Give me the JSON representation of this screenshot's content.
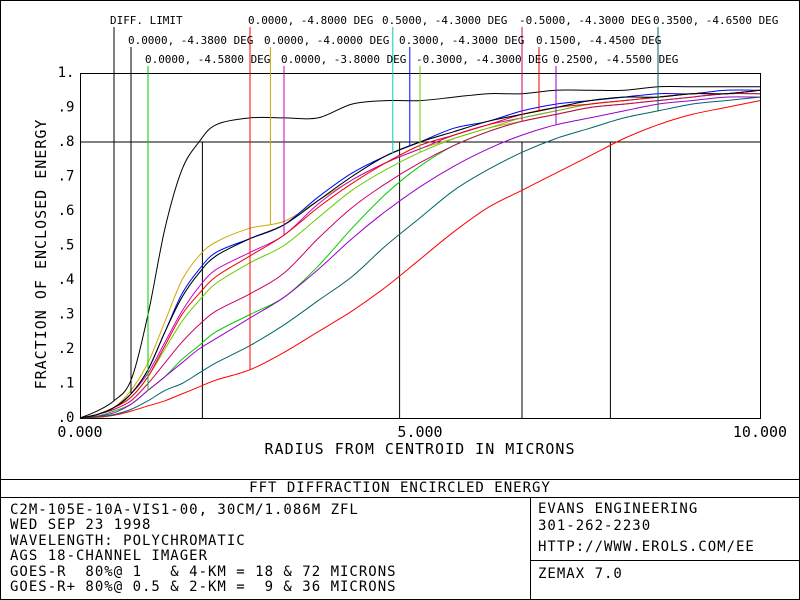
{
  "footer": {
    "title": "FFT DIFFRACTION ENCIRCLED ENERGY",
    "left_lines": [
      "C2M-105E-10A-VIS1-00, 30CM/1.086M ZFL",
      "WED SEP 23 1998",
      "WAVELENGTH: POLYCHROMATIC",
      "AGS 18-CHANNEL IMAGER",
      "GOES-R  80%@ 1   & 4-KM = 18 & 72 MICRONS",
      "GOES-R+ 80%@ 0.5 & 2-KM =  9 & 36 MICRONS"
    ],
    "company": "EVANS ENGINEERING",
    "phone": "301-262-2230",
    "url": "HTTP://WWW.EROLS.COM/EE",
    "software": "ZEMAX 7.0"
  },
  "chart_data": {
    "type": "line",
    "xlabel": "RADIUS FROM CENTROID IN MICRONS",
    "ylabel": "FRACTION OF ENCLOSED ENERGY",
    "xlim": [
      0,
      10
    ],
    "ylim": [
      0,
      1
    ],
    "x_tick_labels": [
      "0.000",
      "5.000",
      "10.000"
    ],
    "y_tick_labels": [
      ".0",
      ".1",
      ".2",
      ".3",
      ".4",
      ".5",
      ".6",
      ".7",
      ".8",
      ".9",
      "1."
    ],
    "reference_line_y": 0.8,
    "drop_lines_x": [
      1.8,
      4.7,
      6.5,
      7.8
    ],
    "x": [
      0,
      0.25,
      0.5,
      0.75,
      1,
      1.25,
      1.5,
      1.75,
      2,
      2.5,
      3,
      3.5,
      4,
      4.5,
      5,
      5.5,
      6,
      6.5,
      7,
      7.5,
      8,
      8.5,
      9,
      9.5,
      10
    ],
    "series": [
      {
        "name": "DIFF. LIMIT",
        "color": "#000000",
        "label_marker_x": 0.5,
        "values": [
          0,
          0.02,
          0.05,
          0.11,
          0.3,
          0.55,
          0.72,
          0.8,
          0.85,
          0.87,
          0.87,
          0.87,
          0.91,
          0.92,
          0.92,
          0.93,
          0.94,
          0.94,
          0.95,
          0.95,
          0.95,
          0.96,
          0.96,
          0.96,
          0.96
        ]
      },
      {
        "name": "0.0000, -4.3800 DEG",
        "color": "#000000",
        "label_marker_x": 0.75,
        "values": [
          0,
          0.01,
          0.03,
          0.07,
          0.14,
          0.25,
          0.35,
          0.42,
          0.47,
          0.52,
          0.56,
          0.63,
          0.7,
          0.76,
          0.8,
          0.83,
          0.86,
          0.88,
          0.9,
          0.92,
          0.93,
          0.93,
          0.94,
          0.94,
          0.95
        ]
      },
      {
        "name": "0.0000, -4.5800 DEG",
        "color": "#00cc00",
        "label_marker_x": 1.0,
        "values": [
          0,
          0.005,
          0.02,
          0.04,
          0.08,
          0.12,
          0.17,
          0.21,
          0.25,
          0.3,
          0.35,
          0.44,
          0.55,
          0.65,
          0.73,
          0.79,
          0.83,
          0.86,
          0.88,
          0.9,
          0.91,
          0.92,
          0.93,
          0.94,
          0.94
        ]
      },
      {
        "name": "0.0000, -4.8000 DEG",
        "color": "#ff0000",
        "label_marker_x": 2.5,
        "values": [
          0,
          0.002,
          0.008,
          0.02,
          0.035,
          0.05,
          0.07,
          0.09,
          0.11,
          0.14,
          0.19,
          0.25,
          0.31,
          0.38,
          0.46,
          0.54,
          0.61,
          0.66,
          0.71,
          0.76,
          0.81,
          0.85,
          0.88,
          0.9,
          0.92
        ]
      },
      {
        "name": "0.0000, -4.0000 DEG",
        "color": "#ccaa00",
        "label_marker_x": 2.8,
        "values": [
          0,
          0.01,
          0.03,
          0.08,
          0.16,
          0.28,
          0.4,
          0.47,
          0.51,
          0.55,
          0.57,
          0.63,
          0.69,
          0.74,
          0.78,
          0.81,
          0.84,
          0.86,
          0.88,
          0.9,
          0.91,
          0.92,
          0.93,
          0.94,
          0.94
        ]
      },
      {
        "name": "0.0000, -3.8000 DEG",
        "color": "#cc00cc",
        "label_marker_x": 3.0,
        "values": [
          0,
          0.01,
          0.03,
          0.07,
          0.13,
          0.22,
          0.31,
          0.38,
          0.43,
          0.48,
          0.53,
          0.62,
          0.69,
          0.74,
          0.78,
          0.82,
          0.85,
          0.87,
          0.89,
          0.91,
          0.92,
          0.93,
          0.94,
          0.94,
          0.95
        ]
      },
      {
        "name": "0.5000, -4.3000 DEG",
        "color": "#00cccc",
        "label_marker_x": 4.6,
        "values": [
          0,
          0.01,
          0.03,
          0.07,
          0.14,
          0.25,
          0.35,
          0.42,
          0.47,
          0.52,
          0.56,
          0.63,
          0.7,
          0.76,
          0.8,
          0.83,
          0.86,
          0.88,
          0.9,
          0.92,
          0.93,
          0.93,
          0.94,
          0.94,
          0.95
        ]
      },
      {
        "name": "0.3000, -4.3000 DEG",
        "color": "#0000ff",
        "label_marker_x": 4.85,
        "values": [
          0,
          0.01,
          0.03,
          0.07,
          0.14,
          0.25,
          0.36,
          0.43,
          0.48,
          0.52,
          0.56,
          0.64,
          0.71,
          0.76,
          0.8,
          0.84,
          0.86,
          0.89,
          0.91,
          0.92,
          0.93,
          0.94,
          0.94,
          0.95,
          0.95
        ]
      },
      {
        "name": "-0.3000, -4.3000 DEG",
        "color": "#66cc00",
        "label_marker_x": 5.0,
        "values": [
          0,
          0.01,
          0.03,
          0.06,
          0.12,
          0.2,
          0.28,
          0.34,
          0.39,
          0.45,
          0.5,
          0.58,
          0.66,
          0.72,
          0.77,
          0.81,
          0.84,
          0.87,
          0.89,
          0.91,
          0.92,
          0.93,
          0.94,
          0.94,
          0.95
        ]
      },
      {
        "name": "-0.5000, -4.3000 DEG",
        "color": "#cc0066",
        "label_marker_x": 6.5,
        "values": [
          0,
          0.01,
          0.025,
          0.05,
          0.1,
          0.16,
          0.22,
          0.27,
          0.31,
          0.36,
          0.42,
          0.52,
          0.61,
          0.68,
          0.74,
          0.79,
          0.83,
          0.86,
          0.88,
          0.9,
          0.91,
          0.92,
          0.93,
          0.94,
          0.94
        ]
      },
      {
        "name": "0.1500, -4.4500 DEG",
        "color": "#ee0000",
        "label_marker_x": 6.75,
        "values": [
          0,
          0.01,
          0.03,
          0.06,
          0.12,
          0.21,
          0.3,
          0.36,
          0.41,
          0.47,
          0.53,
          0.61,
          0.68,
          0.74,
          0.79,
          0.82,
          0.85,
          0.88,
          0.9,
          0.91,
          0.92,
          0.93,
          0.94,
          0.94,
          0.95
        ]
      },
      {
        "name": "0.2500, -4.5500 DEG",
        "color": "#9900cc",
        "label_marker_x": 7.0,
        "values": [
          0,
          0.005,
          0.015,
          0.04,
          0.08,
          0.12,
          0.16,
          0.2,
          0.23,
          0.29,
          0.35,
          0.43,
          0.52,
          0.6,
          0.67,
          0.73,
          0.78,
          0.82,
          0.85,
          0.87,
          0.89,
          0.91,
          0.92,
          0.93,
          0.93
        ]
      },
      {
        "name": "0.3500, -4.6500 DEG",
        "color": "#006666",
        "label_marker_x": 8.5,
        "values": [
          0,
          0.004,
          0.01,
          0.025,
          0.05,
          0.08,
          0.1,
          0.13,
          0.16,
          0.21,
          0.27,
          0.34,
          0.41,
          0.5,
          0.58,
          0.66,
          0.72,
          0.77,
          0.81,
          0.84,
          0.87,
          0.89,
          0.91,
          0.92,
          0.93
        ]
      }
    ],
    "grid": false,
    "legend": "top"
  }
}
